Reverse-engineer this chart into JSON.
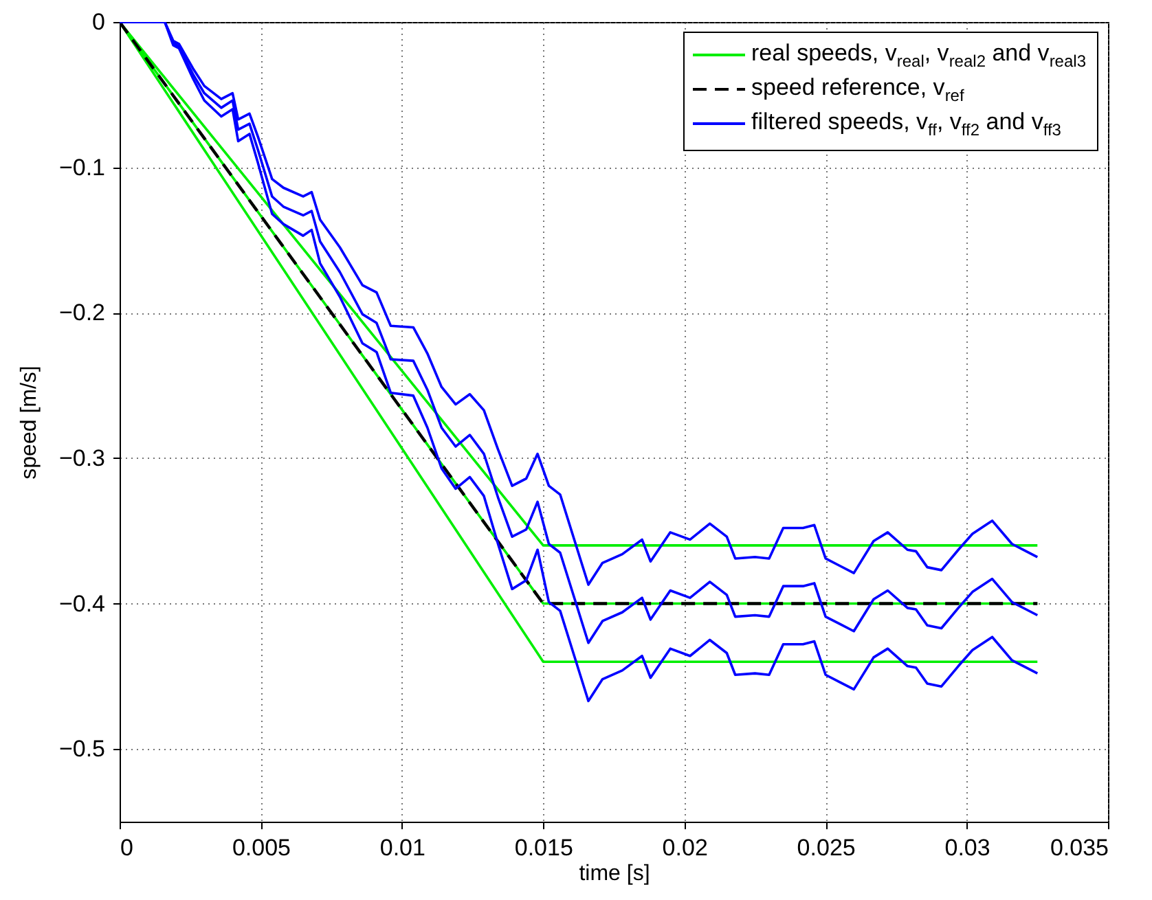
{
  "chart_data": {
    "type": "line",
    "xlabel": "time [s]",
    "ylabel": "speed [m/s]",
    "xlim": [
      0,
      0.035
    ],
    "xticks": [
      0,
      0.005,
      0.01,
      0.015,
      0.02,
      0.025,
      0.03,
      0.035
    ],
    "ylim": [
      -0.55,
      0
    ],
    "yticks": [
      -0.5,
      -0.4,
      -0.3,
      -0.2,
      -0.1,
      0
    ],
    "grid": true,
    "legend": "top right",
    "series": [
      {
        "name": "real speeds, v$_{real}$, v$_{real2}$ and v$_{real3}$",
        "color": "#00ee00",
        "x": [
          0,
          0.015,
          0.0325
        ],
        "values": [
          0,
          -0.36,
          -0.36
        ]
      },
      {
        "color": "#00ee00",
        "x": [
          0,
          0.015,
          0.0325
        ],
        "values": [
          0,
          -0.4,
          -0.4
        ]
      },
      {
        "color": "#00ee00",
        "x": [
          0,
          0.015,
          0.0325
        ],
        "values": [
          0,
          -0.44,
          -0.44
        ]
      },
      {
        "name": "speed reference, v$_{ref}$",
        "color": "#000000",
        "line_style": "dashed",
        "x": [
          0,
          0.015,
          0.0325
        ],
        "values": [
          0,
          -0.4,
          -0.4
        ]
      },
      {
        "name": "filtered speeds, v$_{ff}$, v$_{ff2}$ and v$_{ff3}$",
        "color": "#0000ff",
        "x": [
          0,
          0.0016,
          0.0019,
          0.0021,
          0.0026,
          0.003,
          0.0036,
          0.004,
          0.0042,
          0.0046,
          0.0049,
          0.0054,
          0.0058,
          0.0065,
          0.0068,
          0.0071,
          0.0078,
          0.0086,
          0.0091,
          0.0096,
          0.0104,
          0.0109,
          0.0114,
          0.0119,
          0.0124,
          0.0129,
          0.0134,
          0.0139,
          0.0144,
          0.0148,
          0.0152,
          0.0156,
          0.0161,
          0.0166,
          0.0171,
          0.0178,
          0.0185,
          0.0188,
          0.0195,
          0.0202,
          0.0209,
          0.0215,
          0.0218,
          0.0225,
          0.023,
          0.0235,
          0.0242,
          0.0246,
          0.025,
          0.0255,
          0.026,
          0.0267,
          0.0272,
          0.0279,
          0.0282,
          0.0286,
          0.0291,
          0.0297,
          0.0302,
          0.0309,
          0.0316,
          0.0321,
          0.0325
        ],
        "values": [
          0,
          0,
          -0.013,
          -0.015,
          -0.032,
          -0.044,
          -0.053,
          -0.049,
          -0.067,
          -0.063,
          -0.079,
          -0.108,
          -0.114,
          -0.12,
          -0.117,
          -0.136,
          -0.155,
          -0.181,
          -0.186,
          -0.209,
          -0.21,
          -0.228,
          -0.251,
          -0.263,
          -0.256,
          -0.267,
          -0.294,
          -0.319,
          -0.314,
          -0.297,
          -0.319,
          -0.325,
          -0.356,
          -0.387,
          -0.372,
          -0.366,
          -0.356,
          -0.371,
          -0.351,
          -0.356,
          -0.345,
          -0.354,
          -0.369,
          -0.368,
          -0.369,
          -0.348,
          -0.348,
          -0.346,
          -0.369,
          -0.374,
          -0.379,
          -0.357,
          -0.351,
          -0.363,
          -0.364,
          -0.375,
          -0.377,
          -0.363,
          -0.352,
          -0.343,
          -0.359,
          -0.364,
          -0.368
        ]
      },
      {
        "color": "#0000ff",
        "x": [
          0,
          0.0016,
          0.0019,
          0.0021,
          0.0026,
          0.003,
          0.0036,
          0.004,
          0.0042,
          0.0046,
          0.0049,
          0.0054,
          0.0058,
          0.0065,
          0.0068,
          0.0071,
          0.0078,
          0.0086,
          0.0091,
          0.0096,
          0.0104,
          0.0109,
          0.0114,
          0.0119,
          0.0124,
          0.0129,
          0.0134,
          0.0139,
          0.0144,
          0.0148,
          0.0152,
          0.0156,
          0.0161,
          0.0166,
          0.0171,
          0.0178,
          0.0185,
          0.0188,
          0.0195,
          0.0202,
          0.0209,
          0.0215,
          0.0218,
          0.0225,
          0.023,
          0.0235,
          0.0242,
          0.0246,
          0.025,
          0.0255,
          0.026,
          0.0267,
          0.0272,
          0.0279,
          0.0282,
          0.0286,
          0.0291,
          0.0297,
          0.0302,
          0.0309,
          0.0316,
          0.0321,
          0.0325
        ],
        "values": [
          0,
          0,
          -0.014,
          -0.017,
          -0.036,
          -0.049,
          -0.059,
          -0.054,
          -0.074,
          -0.07,
          -0.088,
          -0.12,
          -0.127,
          -0.133,
          -0.13,
          -0.151,
          -0.172,
          -0.201,
          -0.207,
          -0.232,
          -0.233,
          -0.253,
          -0.279,
          -0.292,
          -0.284,
          -0.297,
          -0.327,
          -0.354,
          -0.349,
          -0.33,
          -0.359,
          -0.365,
          -0.396,
          -0.427,
          -0.412,
          -0.406,
          -0.396,
          -0.411,
          -0.391,
          -0.396,
          -0.385,
          -0.394,
          -0.409,
          -0.408,
          -0.409,
          -0.388,
          -0.388,
          -0.386,
          -0.409,
          -0.414,
          -0.419,
          -0.397,
          -0.391,
          -0.403,
          -0.404,
          -0.415,
          -0.417,
          -0.403,
          -0.392,
          -0.383,
          -0.399,
          -0.404,
          -0.408
        ]
      },
      {
        "color": "#0000ff",
        "x": [
          0,
          0.0016,
          0.0019,
          0.0021,
          0.0026,
          0.003,
          0.0036,
          0.004,
          0.0042,
          0.0046,
          0.0049,
          0.0054,
          0.0058,
          0.0065,
          0.0068,
          0.0071,
          0.0078,
          0.0086,
          0.0091,
          0.0096,
          0.0104,
          0.0109,
          0.0114,
          0.0119,
          0.0124,
          0.0129,
          0.0134,
          0.0139,
          0.0144,
          0.0148,
          0.0152,
          0.0156,
          0.0161,
          0.0166,
          0.0171,
          0.0178,
          0.0185,
          0.0188,
          0.0195,
          0.0202,
          0.0209,
          0.0215,
          0.0218,
          0.0225,
          0.023,
          0.0235,
          0.0242,
          0.0246,
          0.025,
          0.0255,
          0.026,
          0.0267,
          0.0272,
          0.0279,
          0.0282,
          0.0286,
          0.0291,
          0.0297,
          0.0302,
          0.0309,
          0.0316,
          0.0321,
          0.0325
        ],
        "values": [
          0,
          0,
          -0.016,
          -0.018,
          -0.039,
          -0.054,
          -0.065,
          -0.06,
          -0.082,
          -0.077,
          -0.097,
          -0.132,
          -0.139,
          -0.147,
          -0.143,
          -0.166,
          -0.189,
          -0.221,
          -0.227,
          -0.255,
          -0.257,
          -0.279,
          -0.307,
          -0.321,
          -0.313,
          -0.326,
          -0.359,
          -0.39,
          -0.384,
          -0.363,
          -0.399,
          -0.405,
          -0.436,
          -0.467,
          -0.452,
          -0.446,
          -0.436,
          -0.451,
          -0.431,
          -0.436,
          -0.425,
          -0.434,
          -0.449,
          -0.448,
          -0.449,
          -0.428,
          -0.428,
          -0.426,
          -0.449,
          -0.454,
          -0.459,
          -0.437,
          -0.431,
          -0.443,
          -0.444,
          -0.455,
          -0.457,
          -0.443,
          -0.432,
          -0.423,
          -0.439,
          -0.444,
          -0.448
        ]
      }
    ]
  }
}
